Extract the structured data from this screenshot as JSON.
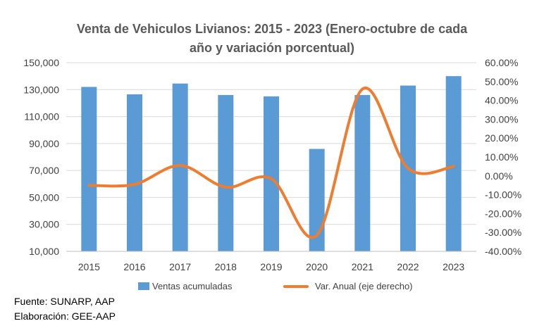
{
  "chart_data": {
    "type": "bar",
    "title_lines": [
      "Venta de Vehiculos Livianos: 2015 - 2023 (Enero-octubre de cada",
      "año y variación porcentual)"
    ],
    "categories": [
      "2015",
      "2016",
      "2017",
      "2018",
      "2019",
      "2020",
      "2021",
      "2022",
      "2023"
    ],
    "series": [
      {
        "name": "Ventas acumuladas",
        "type": "bar",
        "axis": "left",
        "color": "#5B9BD5",
        "values": [
          132000,
          126500,
          134500,
          126000,
          125000,
          86000,
          126000,
          133000,
          140000
        ]
      },
      {
        "name": "Var. Anual (eje derecho)",
        "type": "line",
        "axis": "right",
        "color": "#ED7D31",
        "values": [
          -5.0,
          -4.5,
          5.5,
          -6.0,
          -1.5,
          -31.5,
          46.0,
          4.0,
          5.0
        ]
      }
    ],
    "y_left": {
      "min": 10000,
      "max": 150000,
      "ticks": [
        "10,000",
        "30,000",
        "50,000",
        "70,000",
        "90,000",
        "110,000",
        "130,000",
        "150,000"
      ]
    },
    "y_right": {
      "min": -40,
      "max": 60,
      "ticks": [
        "-40.00%",
        "-30.00%",
        "-20.00%",
        "-10.00%",
        "0.00%",
        "10.00%",
        "20.00%",
        "30.00%",
        "40.00%",
        "50.00%",
        "60.00%"
      ]
    },
    "grid": true,
    "legend_position": "bottom"
  },
  "notes": {
    "source": "Fuente: SUNARP, AAP",
    "prepared_by": "Elaboración: GEE-AAP"
  }
}
